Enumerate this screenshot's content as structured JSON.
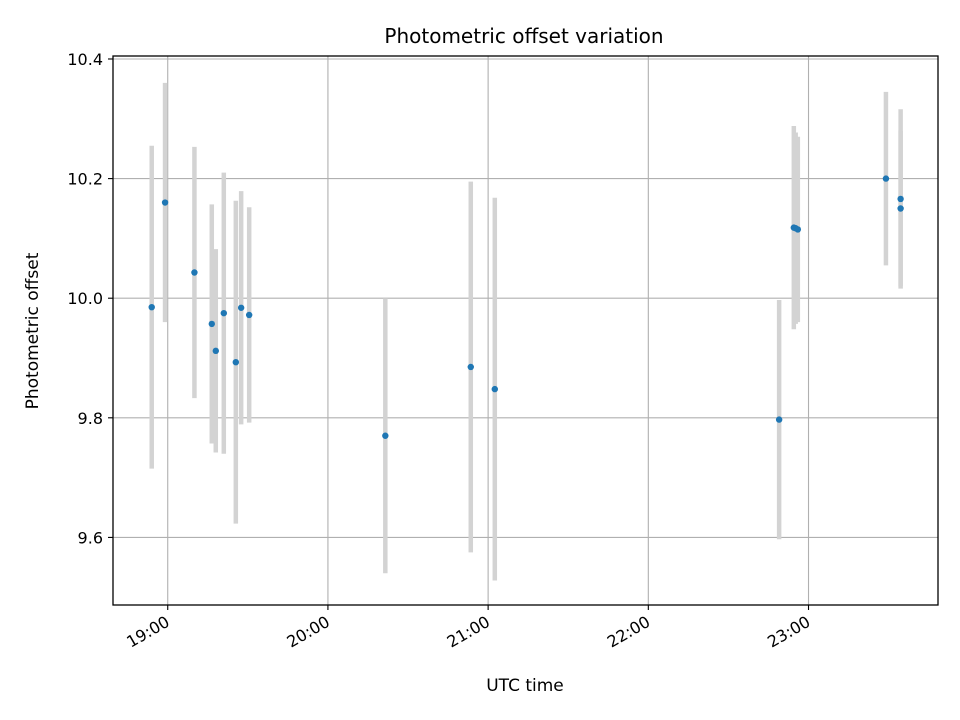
{
  "chart_data": {
    "type": "scatter",
    "title": "Photometric offset variation",
    "xlabel": "UTC time",
    "ylabel": "Photometric offset",
    "x_ticks": [
      "19:00",
      "20:00",
      "21:00",
      "22:00",
      "23:00"
    ],
    "x_tick_minutes": [
      1140,
      1200,
      1260,
      1320,
      1380
    ],
    "xlim_minutes": [
      1119.5,
      1428.5
    ],
    "y_ticks": [
      "9.6",
      "9.8",
      "10.0",
      "10.2",
      "10.4"
    ],
    "y_tick_values": [
      9.6,
      9.8,
      10.0,
      10.2,
      10.4
    ],
    "ylim": [
      9.487,
      10.405
    ],
    "grid": true,
    "point_color": "#1f77b4",
    "errorbar_color": "#d3d3d3",
    "series": [
      {
        "points": [
          {
            "time": "18:54",
            "t": 1134.0,
            "y": 9.985,
            "err": 0.27
          },
          {
            "time": "18:59",
            "t": 1139.0,
            "y": 10.16,
            "err": 0.2
          },
          {
            "time": "19:10",
            "t": 1150.0,
            "y": 10.043,
            "err": 0.21
          },
          {
            "time": "19:16",
            "t": 1156.5,
            "y": 9.957,
            "err": 0.2
          },
          {
            "time": "19:18",
            "t": 1158.0,
            "y": 9.912,
            "err": 0.17
          },
          {
            "time": "19:21",
            "t": 1161.0,
            "y": 9.975,
            "err": 0.235
          },
          {
            "time": "19:26",
            "t": 1165.5,
            "y": 9.893,
            "err": 0.27
          },
          {
            "time": "19:28",
            "t": 1167.5,
            "y": 9.984,
            "err": 0.195
          },
          {
            "time": "19:31",
            "t": 1170.5,
            "y": 9.972,
            "err": 0.18
          },
          {
            "time": "20:22",
            "t": 1221.5,
            "y": 9.77,
            "err": 0.23
          },
          {
            "time": "20:54",
            "t": 1253.5,
            "y": 9.885,
            "err": 0.31
          },
          {
            "time": "21:03",
            "t": 1262.5,
            "y": 9.848,
            "err": 0.32
          },
          {
            "time": "22:49",
            "t": 1369.0,
            "y": 9.797,
            "err": 0.2
          },
          {
            "time": "22:55",
            "t": 1374.5,
            "y": 10.118,
            "err": 0.17
          },
          {
            "time": "22:55",
            "t": 1375.2,
            "y": 10.117,
            "err": 0.16
          },
          {
            "time": "22:56",
            "t": 1376.0,
            "y": 10.115,
            "err": 0.155
          },
          {
            "time": "23:29",
            "t": 1409.0,
            "y": 10.2,
            "err": 0.145
          },
          {
            "time": "23:35",
            "t": 1414.5,
            "y": 10.166,
            "err": 0.15
          },
          {
            "time": "23:35",
            "t": 1414.5,
            "y": 10.15,
            "err": 0.13
          }
        ]
      }
    ]
  }
}
